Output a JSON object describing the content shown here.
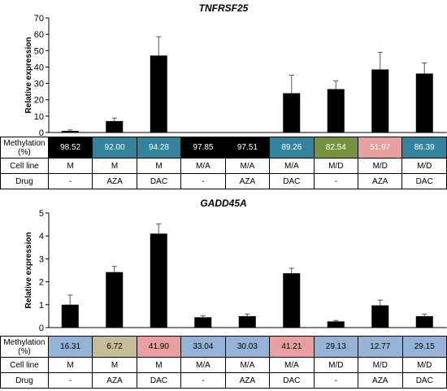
{
  "chart_data": [
    {
      "type": "bar",
      "title": "TNFRSF25",
      "ylabel": "Relative expression",
      "ylim": [
        0,
        70
      ],
      "yticks": [
        "0",
        "10",
        "20",
        "30",
        "40",
        "50",
        "60",
        "70"
      ],
      "values": [
        1.0,
        7.0,
        47.0,
        0,
        0,
        24.0,
        26.5,
        38.5,
        36.0
      ],
      "errors": [
        0.6,
        1.8,
        11.5,
        0,
        0,
        11.0,
        5.0,
        10.5,
        6.5
      ],
      "bar_color": "#000000",
      "table": {
        "methylation_label": "Methylation (%)",
        "cell_line_label": "Cell line",
        "drug_label": "Drug",
        "methylation": [
          "98.52",
          "92.00",
          "94.28",
          "97.85",
          "97.51",
          "89.26",
          "82.54",
          "51.97",
          "86.39"
        ],
        "methylation_colors": [
          "#000000",
          "#31849b",
          "#31849b",
          "#000000",
          "#000000",
          "#31849b",
          "#76923c",
          "#e6a0a0",
          "#31849b"
        ],
        "methylation_text_colors": [
          "#ffffff",
          "#ffffff",
          "#ffffff",
          "#ffffff",
          "#ffffff",
          "#ffffff",
          "#ffffff",
          "#ffffff",
          "#ffffff"
        ],
        "cell_line": [
          "M",
          "M",
          "M",
          "M/A",
          "M/A",
          "M/A",
          "M/D",
          "M/D",
          "M/D"
        ],
        "drug": [
          "-",
          "AZA",
          "DAC",
          "-",
          "AZA",
          "DAC",
          "-",
          "AZA",
          "DAC"
        ]
      }
    },
    {
      "type": "bar",
      "title": "GADD45A",
      "ylabel": "Relative expression",
      "ylim": [
        0,
        5
      ],
      "yticks": [
        "0",
        "1",
        "2",
        "3",
        "4",
        "5"
      ],
      "values": [
        1.0,
        2.42,
        4.1,
        0.45,
        0.5,
        2.37,
        0.27,
        0.97,
        0.5
      ],
      "errors": [
        0.42,
        0.25,
        0.42,
        0.07,
        0.09,
        0.22,
        0.04,
        0.23,
        0.09
      ],
      "bar_color": "#000000",
      "table": {
        "methylation_label": "Methylation (%)",
        "cell_line_label": "Cell line",
        "drug_label": "Drug",
        "methylation": [
          "16.31",
          "6.72",
          "41.90",
          "33.04",
          "30.03",
          "41.21",
          "29.13",
          "12.77",
          "29.15"
        ],
        "methylation_colors": [
          "#95b3d7",
          "#c4bd97",
          "#e6a0a0",
          "#95b3d7",
          "#95b3d7",
          "#e6a0a0",
          "#95b3d7",
          "#95b3d7",
          "#95b3d7"
        ],
        "methylation_text_colors": [
          "#000000",
          "#000000",
          "#000000",
          "#000000",
          "#000000",
          "#000000",
          "#000000",
          "#000000",
          "#000000"
        ],
        "cell_line": [
          "M",
          "M",
          "M",
          "M/A",
          "M/A",
          "M/A",
          "M/D",
          "M/D",
          "M/D"
        ],
        "drug": [
          "-",
          "AZA",
          "DAC",
          "-",
          "AZA",
          "DAC",
          "-",
          "AZA",
          "DAC"
        ]
      }
    }
  ]
}
